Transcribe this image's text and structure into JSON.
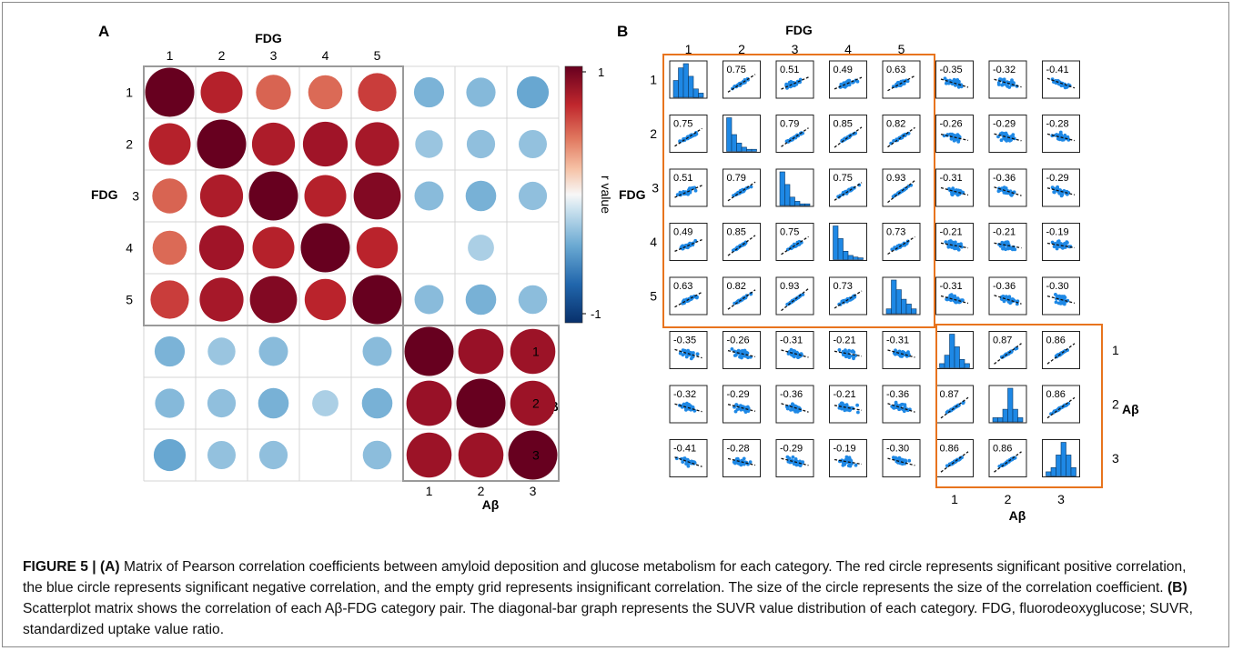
{
  "panel_a": {
    "panel_label": "A",
    "fdg_title": "FDG",
    "abeta_title": "Aβ",
    "fdg_side_label": "FDG",
    "abeta_side_label": "Aβ",
    "fdg_indices": [
      "1",
      "2",
      "3",
      "4",
      "5"
    ],
    "abeta_indices": [
      "1",
      "2",
      "3"
    ],
    "colorbar": {
      "label": "r value",
      "max_label": "1",
      "min_label": "-1",
      "range": [
        -1,
        1
      ]
    }
  },
  "panel_b": {
    "panel_label": "B",
    "fdg_title": "FDG",
    "abeta_title": "Aβ",
    "fdg_side_label": "FDG",
    "abeta_side_label": "Aβ",
    "fdg_indices": [
      "1",
      "2",
      "3",
      "4",
      "5"
    ],
    "abeta_indices": [
      "1",
      "2",
      "3"
    ],
    "point_color": "#1e88e5",
    "box_color": "#e8741e"
  },
  "chart_data": [
    {
      "type": "heatmap",
      "panel": "A",
      "rows": [
        "FDG 1",
        "FDG 2",
        "FDG 3",
        "FDG 4",
        "FDG 5",
        "Aβ 1",
        "Aβ 2",
        "Aβ 3"
      ],
      "columns": [
        "FDG 1",
        "FDG 2",
        "FDG 3",
        "FDG 4",
        "FDG 5",
        "Aβ 1",
        "Aβ 2",
        "Aβ 3"
      ],
      "values": [
        [
          1.0,
          0.75,
          0.51,
          0.49,
          0.63,
          -0.35,
          -0.32,
          -0.41
        ],
        [
          0.75,
          1.0,
          0.79,
          0.85,
          0.82,
          -0.26,
          -0.29,
          -0.28
        ],
        [
          0.51,
          0.79,
          1.0,
          0.75,
          0.93,
          -0.31,
          -0.36,
          -0.29
        ],
        [
          0.49,
          0.85,
          0.75,
          1.0,
          0.73,
          null,
          -0.21,
          null
        ],
        [
          0.63,
          0.82,
          0.93,
          0.73,
          1.0,
          -0.31,
          -0.36,
          -0.3
        ],
        [
          -0.35,
          -0.26,
          -0.31,
          null,
          -0.31,
          1.0,
          0.87,
          0.86
        ],
        [
          -0.32,
          -0.29,
          -0.36,
          -0.21,
          -0.36,
          0.87,
          1.0,
          0.86
        ],
        [
          -0.41,
          -0.28,
          -0.29,
          null,
          -0.3,
          0.86,
          0.86,
          1.0
        ]
      ],
      "colorbar_label": "r value",
      "range": [
        -1,
        1
      ]
    },
    {
      "type": "scatter",
      "panel": "B",
      "rows": [
        "FDG 1",
        "FDG 2",
        "FDG 3",
        "FDG 4",
        "FDG 5",
        "Aβ 1",
        "Aβ 2",
        "Aβ 3"
      ],
      "columns": [
        "FDG 1",
        "FDG 2",
        "FDG 3",
        "FDG 4",
        "FDG 5",
        "Aβ 1",
        "Aβ 2",
        "Aβ 3"
      ],
      "cell_labels": [
        [
          null,
          "0.75",
          "0.51",
          "0.49",
          "0.63",
          "-0.35",
          "-0.32",
          "-0.41"
        ],
        [
          "0.75",
          null,
          "0.79",
          "0.85",
          "0.82",
          "-0.26",
          "-0.29",
          "-0.28"
        ],
        [
          "0.51",
          "0.79",
          null,
          "0.75",
          "0.93",
          "-0.31",
          "-0.36",
          "-0.29"
        ],
        [
          "0.49",
          "0.85",
          "0.75",
          null,
          "0.73",
          "-0.21",
          "-0.21",
          "-0.19"
        ],
        [
          "0.63",
          "0.82",
          "0.93",
          "0.73",
          null,
          "-0.31",
          "-0.36",
          "-0.30"
        ],
        [
          "-0.35",
          "-0.26",
          "-0.31",
          "-0.21",
          "-0.31",
          null,
          "0.87",
          "0.86"
        ],
        [
          "-0.32",
          "-0.29",
          "-0.36",
          "-0.21",
          "-0.36",
          "0.87",
          null,
          "0.86"
        ],
        [
          "-0.41",
          "-0.28",
          "-0.29",
          "-0.19",
          "-0.30",
          "0.86",
          "0.86",
          null
        ]
      ],
      "diagonal_histograms": [
        [
          4,
          7,
          8,
          5,
          2,
          1
        ],
        [
          8,
          4,
          2,
          1,
          0.5,
          0.5
        ],
        [
          8,
          5,
          2,
          1,
          0.4,
          0.4
        ],
        [
          8,
          5,
          2,
          1,
          0.6,
          0.4
        ],
        [
          1,
          7,
          5,
          3,
          2,
          1
        ],
        [
          1,
          3,
          8,
          5,
          2,
          1
        ],
        [
          1,
          1,
          3,
          8,
          3,
          1
        ],
        [
          1,
          2,
          5,
          8,
          5,
          2
        ]
      ]
    }
  ],
  "caption": {
    "head": "FIGURE 5 |",
    "part_a_label": "(A)",
    "part_a_text": " Matrix of Pearson correlation coefficients between amyloid deposition and glucose metabolism for each category. The red circle represents significant positive correlation, the blue circle represents significant negative correlation, and the empty grid represents insignificant correlation. The size of the circle represents the size of the correlation coefficient. ",
    "part_b_label": "(B)",
    "part_b_text": " Scatterplot matrix shows the correlation of each Aβ-FDG category pair. The diagonal-bar graph represents the SUVR value distribution of each category. FDG, fluorodeoxyglucose; SUVR, standardized uptake value ratio."
  }
}
